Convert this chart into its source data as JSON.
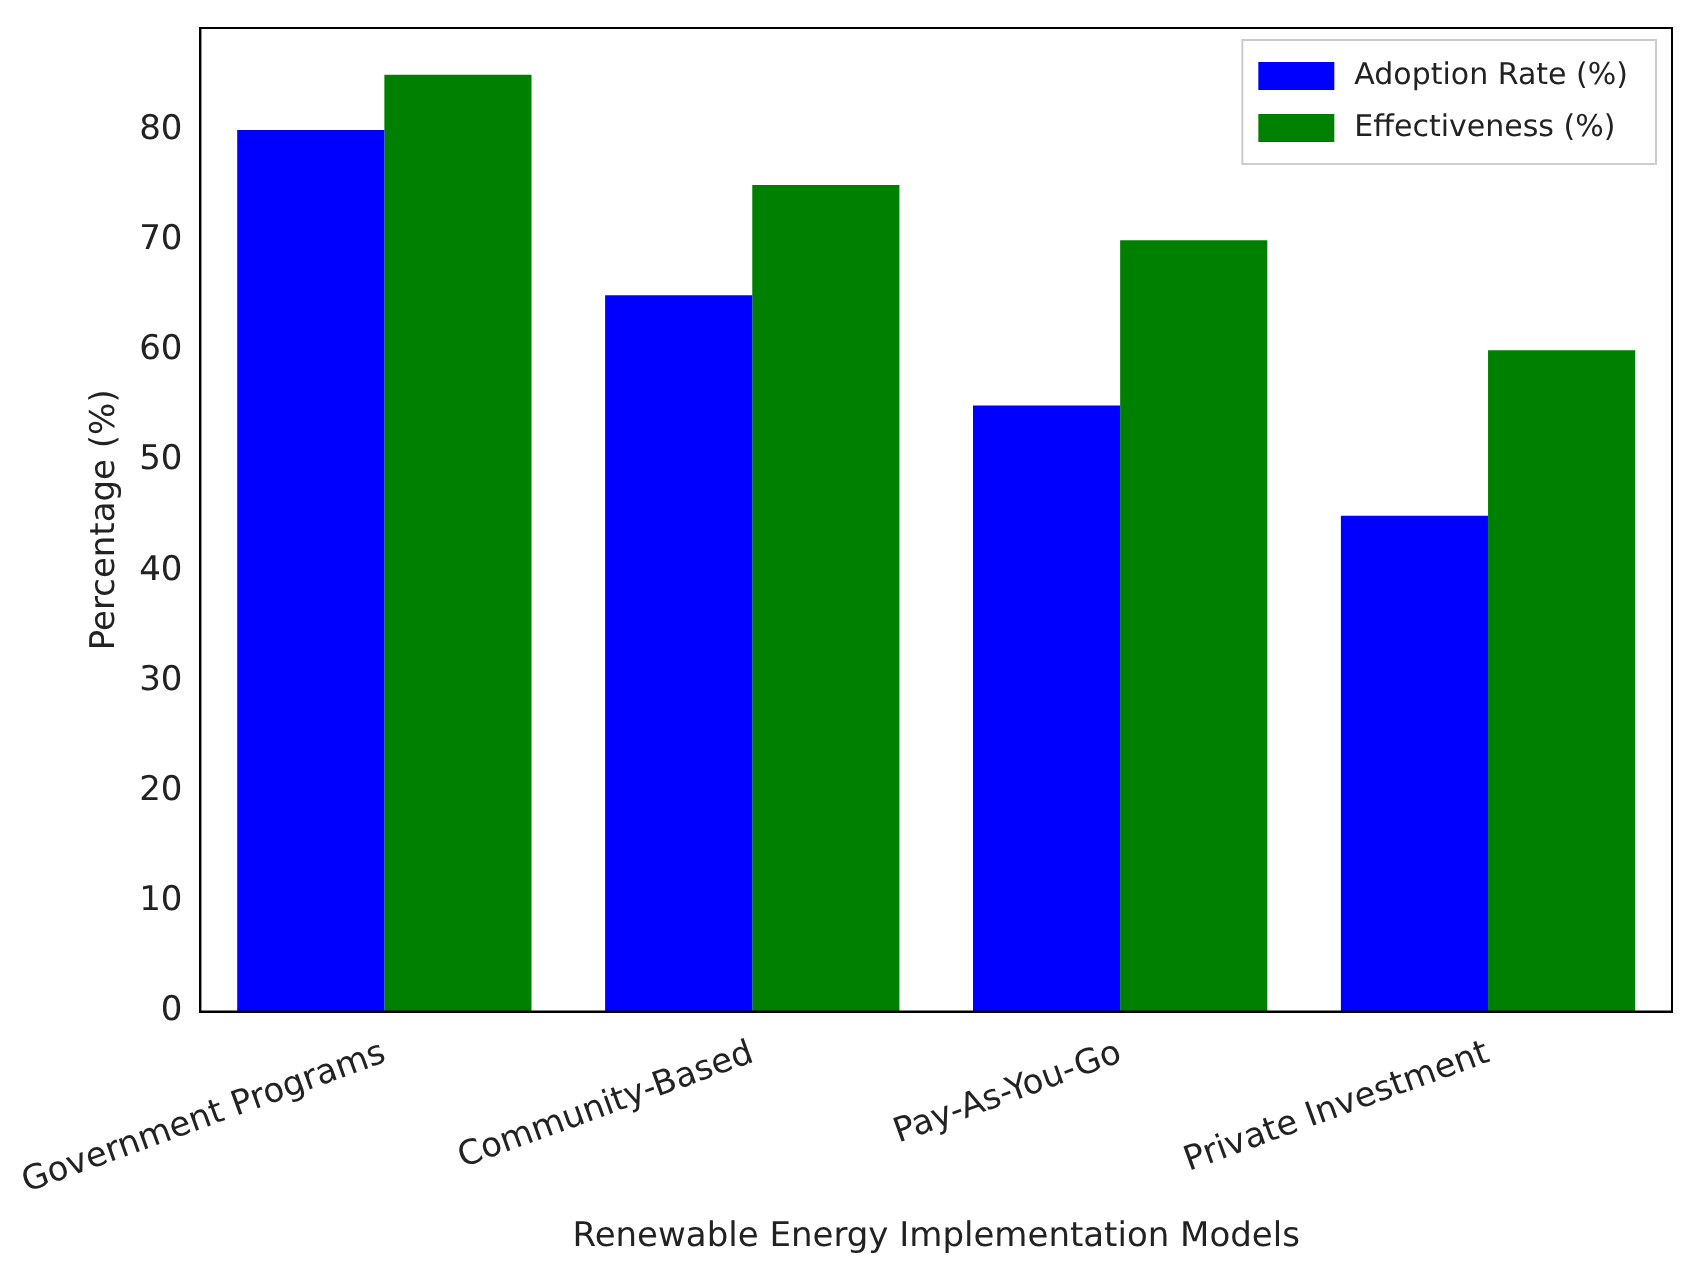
{
  "chart_data": {
    "type": "bar",
    "xlabel": "Renewable Energy Implementation Models",
    "ylabel": "Percentage (%)",
    "categories": [
      "Government Programs",
      "Community-Based",
      "Pay-As-You-Go",
      "Private Investment"
    ],
    "series": [
      {
        "name": "Adoption Rate (%)",
        "color": "#0000ff",
        "values": [
          80,
          65,
          55,
          45
        ]
      },
      {
        "name": "Effectiveness (%)",
        "color": "#008000",
        "values": [
          85,
          75,
          70,
          60
        ]
      }
    ],
    "ylim": [
      0,
      89.25
    ],
    "yticks": [
      0,
      10,
      20,
      30,
      40,
      50,
      60,
      70,
      80
    ],
    "legend": "top right"
  }
}
